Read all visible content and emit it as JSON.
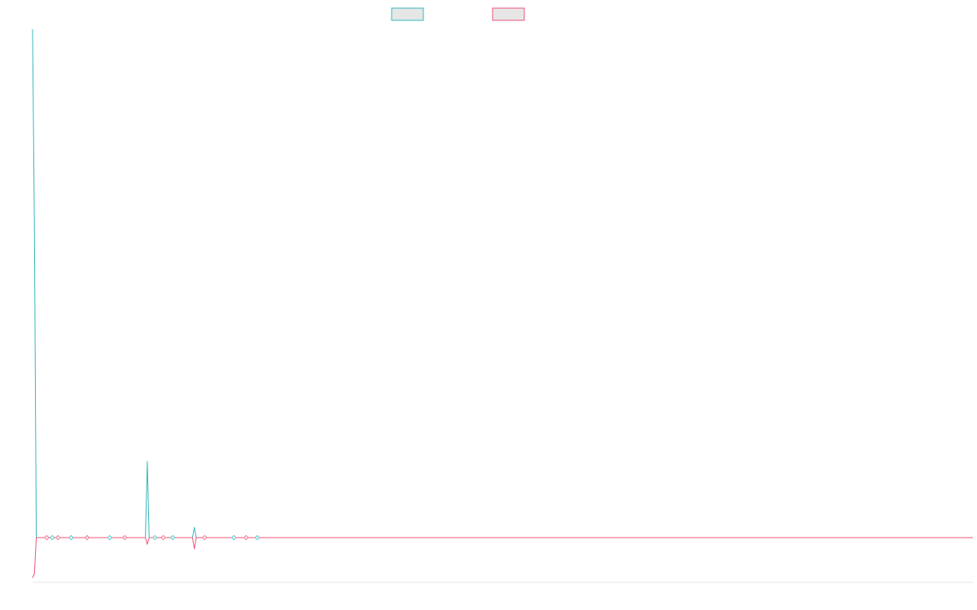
{
  "chart_data": {
    "type": "line",
    "title": "",
    "xlabel": "",
    "ylabel": "",
    "grid": false,
    "legend_position": "top-center",
    "ylim": [
      -1,
      10
    ],
    "xlim": [
      0,
      100
    ],
    "series": [
      {
        "color": "#36b8be",
        "fill": "#e6e6e6",
        "points": [
          [
            0,
            10.0
          ],
          [
            0.2,
            6.0
          ],
          [
            0.4,
            0.0
          ],
          [
            12.0,
            0.0
          ],
          [
            12.2,
            1.5
          ],
          [
            12.4,
            0.0
          ],
          [
            17.0,
            0.0
          ],
          [
            17.2,
            0.2
          ],
          [
            17.4,
            0.0
          ],
          [
            100,
            0.0
          ]
        ]
      },
      {
        "color": "#f0547a",
        "fill": "#e6e6e6",
        "points": [
          [
            0,
            -0.9
          ],
          [
            0.2,
            -0.8
          ],
          [
            0.4,
            0.0
          ],
          [
            12.0,
            0.0
          ],
          [
            12.2,
            -0.15
          ],
          [
            12.4,
            0.0
          ],
          [
            17.0,
            0.0
          ],
          [
            17.2,
            -0.25
          ],
          [
            17.4,
            0.0
          ],
          [
            100,
            0.0
          ]
        ]
      }
    ],
    "markers": [
      {
        "x": 1.5,
        "y": 0.0
      },
      {
        "x": 2.1,
        "y": 0.0
      },
      {
        "x": 2.7,
        "y": 0.0
      },
      {
        "x": 4.1,
        "y": 0.0
      },
      {
        "x": 5.8,
        "y": 0.0
      },
      {
        "x": 8.2,
        "y": 0.0
      },
      {
        "x": 9.8,
        "y": 0.0
      },
      {
        "x": 13.0,
        "y": 0.0
      },
      {
        "x": 13.9,
        "y": 0.0
      },
      {
        "x": 14.9,
        "y": 0.0
      },
      {
        "x": 18.3,
        "y": 0.0
      },
      {
        "x": 21.4,
        "y": 0.0
      },
      {
        "x": 22.7,
        "y": 0.0
      },
      {
        "x": 23.9,
        "y": 0.0
      }
    ]
  }
}
